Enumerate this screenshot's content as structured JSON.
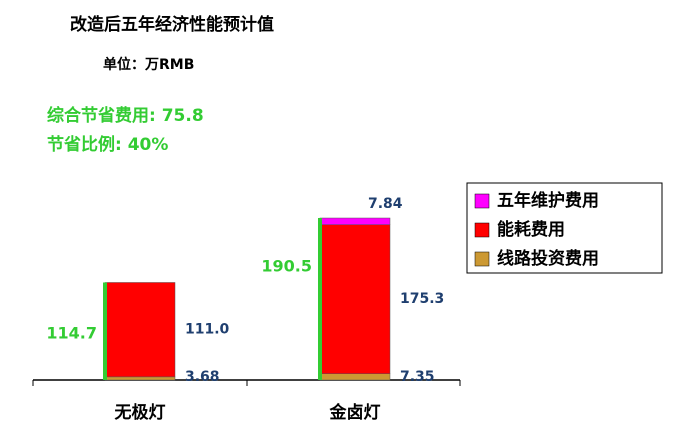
{
  "chart_data": {
    "type": "stacked-bar",
    "title": "改造后五年经济性能预计值",
    "subtitle": "单位：万RMB",
    "annotations": [
      "综合节省费用: 75.8",
      "节省比例: 40%"
    ],
    "categories": [
      "无极灯",
      "金卤灯"
    ],
    "totals": [
      114.7,
      190.5
    ],
    "totals_color": "#33cc33",
    "series": [
      {
        "name": "五年维护费用",
        "color": "#ff00ff",
        "values": [
          null,
          7.84
        ]
      },
      {
        "name": "能耗费用",
        "color": "#ff0000",
        "values": [
          111.0,
          175.3
        ],
        "value_labels": [
          "111.0",
          "175.3"
        ]
      },
      {
        "name": "线路投资费用",
        "color": "#cc9933",
        "values": [
          3.68,
          7.35
        ]
      }
    ],
    "legend": "right"
  }
}
